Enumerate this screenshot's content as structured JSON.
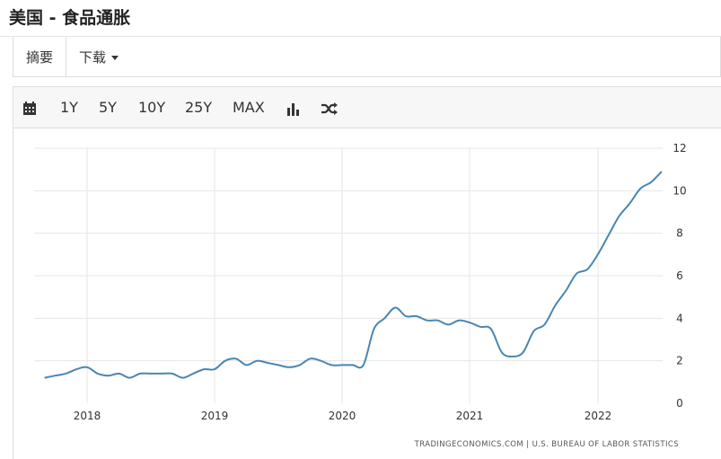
{
  "page": {
    "title": "美国 - 食品通胀"
  },
  "tabs": [
    {
      "label": "摘要",
      "active": true
    },
    {
      "label": "下载",
      "active": false,
      "has_dropdown": true
    }
  ],
  "toolbar": {
    "calendar_icon": "calendar-icon",
    "ranges": [
      "1Y",
      "5Y",
      "10Y",
      "25Y",
      "MAX"
    ],
    "bar_chart_icon": "bar-chart-icon",
    "shuffle_icon": "shuffle-icon"
  },
  "chart_data": {
    "type": "line",
    "title": "",
    "xlabel": "",
    "ylabel": "",
    "x_tick_labels": [
      "2018",
      "2019",
      "2020",
      "2021",
      "2022"
    ],
    "y_ticks": [
      0,
      2,
      4,
      6,
      8,
      10,
      12
    ],
    "ylim": [
      0,
      12
    ],
    "grid": true,
    "y_axis_side": "right",
    "line_color": "#4a86b0",
    "credit": "TRADINGECONOMICS.COM | U.S. BUREAU OF LABOR STATISTICS",
    "series": [
      {
        "x": [
          "2017-09",
          "2017-10",
          "2017-11",
          "2017-12",
          "2018-01",
          "2018-02",
          "2018-03",
          "2018-04",
          "2018-05",
          "2018-06",
          "2018-07",
          "2018-08",
          "2018-09",
          "2018-10",
          "2018-11",
          "2018-12",
          "2019-01",
          "2019-02",
          "2019-03",
          "2019-04",
          "2019-05",
          "2019-06",
          "2019-07",
          "2019-08",
          "2019-09",
          "2019-10",
          "2019-11",
          "2019-12",
          "2020-01",
          "2020-02",
          "2020-03",
          "2020-04",
          "2020-05",
          "2020-06",
          "2020-07",
          "2020-08",
          "2020-09",
          "2020-10",
          "2020-11",
          "2020-12",
          "2021-01",
          "2021-02",
          "2021-03",
          "2021-04",
          "2021-05",
          "2021-06",
          "2021-07",
          "2021-08",
          "2021-09",
          "2021-10",
          "2021-11",
          "2021-12",
          "2022-01",
          "2022-02",
          "2022-03",
          "2022-04",
          "2022-05",
          "2022-06",
          "2022-07"
        ],
        "values": [
          1.2,
          1.3,
          1.4,
          1.6,
          1.7,
          1.4,
          1.3,
          1.4,
          1.2,
          1.4,
          1.4,
          1.4,
          1.4,
          1.2,
          1.4,
          1.6,
          1.6,
          2.0,
          2.1,
          1.8,
          2.0,
          1.9,
          1.8,
          1.7,
          1.8,
          2.1,
          2.0,
          1.8,
          1.8,
          1.8,
          1.8,
          3.5,
          4.0,
          4.5,
          4.1,
          4.1,
          3.9,
          3.9,
          3.7,
          3.9,
          3.8,
          3.6,
          3.5,
          2.4,
          2.2,
          2.4,
          3.4,
          3.7,
          4.6,
          5.3,
          6.1,
          6.3,
          7.0,
          7.9,
          8.8,
          9.4,
          10.1,
          10.4,
          10.9
        ]
      }
    ]
  }
}
